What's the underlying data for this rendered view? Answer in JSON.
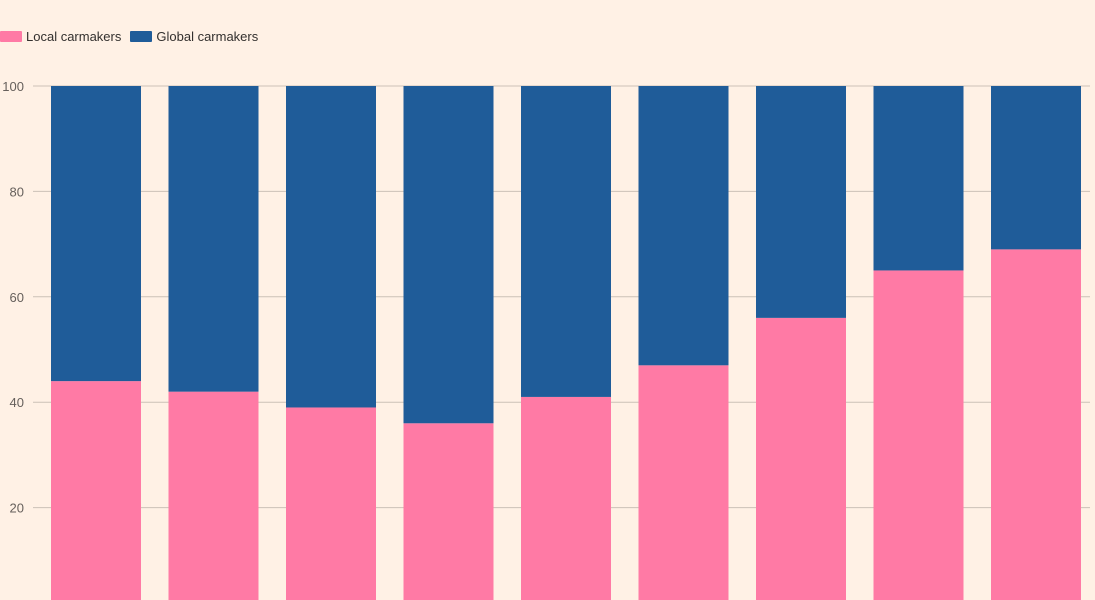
{
  "chart_data": {
    "type": "bar",
    "stacked": true,
    "title": "",
    "xlabel": "",
    "ylabel": "",
    "categories": [
      "",
      "",
      "",
      "",
      "",
      "",
      "",
      "",
      ""
    ],
    "series": [
      {
        "name": "Local carmakers",
        "color": "#FF7AA5",
        "values": [
          44,
          42,
          39,
          36,
          41,
          47,
          56,
          65,
          69
        ]
      },
      {
        "name": "Global carmakers",
        "color": "#1F5C99",
        "values": [
          56,
          58,
          61,
          64,
          59,
          53,
          44,
          35,
          31
        ]
      }
    ],
    "ylim": [
      0,
      100
    ],
    "yticks": [
      "20",
      "40",
      "60",
      "80",
      "100"
    ],
    "grid": true,
    "legend_position": "top-left",
    "colors": {
      "background": "#FFF1E5",
      "gridline": "#CCC1B7",
      "tick_text": "#66605C"
    }
  }
}
